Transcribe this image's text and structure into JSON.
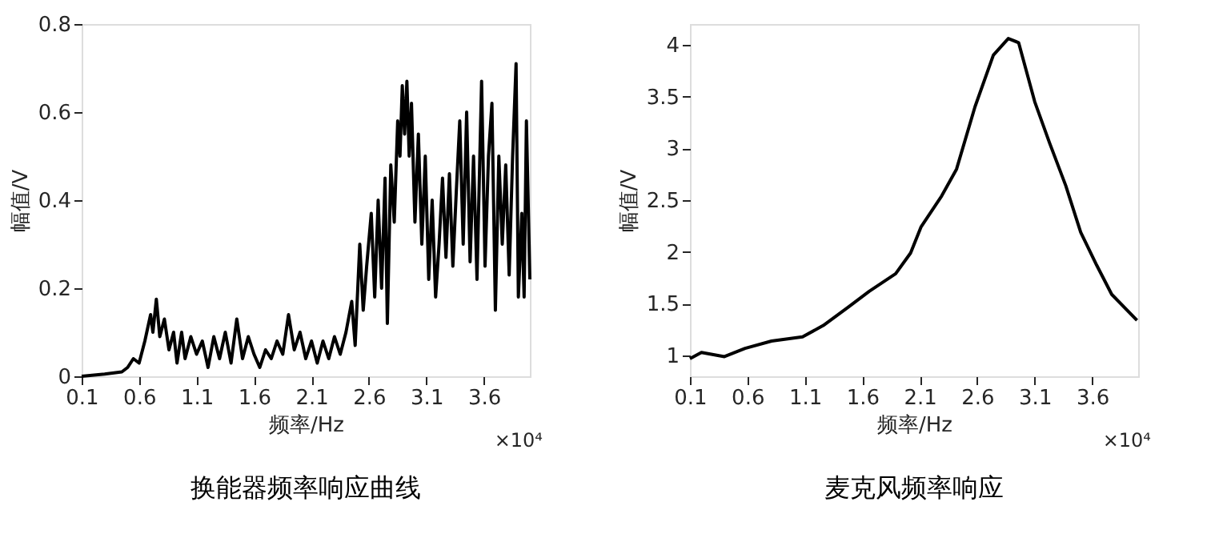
{
  "chart_data": [
    {
      "type": "line",
      "title": "换能器频率响应曲线",
      "xlabel": "频率/Hz",
      "ylabel": "幅值/V",
      "annotations": [
        "×10⁴"
      ],
      "xlim": [
        0.1,
        4.0
      ],
      "ylim": [
        0,
        0.8
      ],
      "xticks": [
        0.1,
        0.6,
        1.1,
        1.6,
        2.1,
        2.6,
        3.1,
        3.6
      ],
      "yticks": [
        0,
        0.2,
        0.4,
        0.6,
        0.8
      ],
      "grid": false,
      "marker": "none",
      "line_style": "solid",
      "series": [
        {
          "color": "#000000",
          "x": [
            0.1,
            0.3,
            0.45,
            0.5,
            0.55,
            0.6,
            0.65,
            0.7,
            0.72,
            0.75,
            0.78,
            0.82,
            0.86,
            0.9,
            0.93,
            0.97,
            1.0,
            1.05,
            1.1,
            1.15,
            1.2,
            1.25,
            1.3,
            1.35,
            1.4,
            1.45,
            1.5,
            1.55,
            1.6,
            1.65,
            1.7,
            1.75,
            1.8,
            1.85,
            1.9,
            1.95,
            2.0,
            2.05,
            2.1,
            2.15,
            2.2,
            2.25,
            2.3,
            2.35,
            2.4,
            2.45,
            2.48,
            2.52,
            2.55,
            2.58,
            2.62,
            2.65,
            2.68,
            2.71,
            2.74,
            2.76,
            2.79,
            2.82,
            2.85,
            2.87,
            2.89,
            2.91,
            2.93,
            2.95,
            2.97,
            3.0,
            3.03,
            3.06,
            3.09,
            3.12,
            3.15,
            3.18,
            3.21,
            3.24,
            3.27,
            3.3,
            3.33,
            3.36,
            3.39,
            3.42,
            3.45,
            3.48,
            3.51,
            3.54,
            3.58,
            3.61,
            3.64,
            3.67,
            3.7,
            3.73,
            3.76,
            3.79,
            3.82,
            3.85,
            3.88,
            3.9,
            3.93,
            3.95,
            3.97,
            4.0
          ],
          "values": [
            0,
            0.005,
            0.01,
            0.02,
            0.04,
            0.03,
            0.08,
            0.14,
            0.1,
            0.175,
            0.09,
            0.13,
            0.06,
            0.1,
            0.03,
            0.1,
            0.04,
            0.09,
            0.05,
            0.08,
            0.02,
            0.09,
            0.04,
            0.1,
            0.03,
            0.13,
            0.04,
            0.09,
            0.05,
            0.02,
            0.06,
            0.04,
            0.08,
            0.05,
            0.14,
            0.06,
            0.1,
            0.04,
            0.08,
            0.03,
            0.08,
            0.04,
            0.09,
            0.05,
            0.1,
            0.17,
            0.07,
            0.3,
            0.15,
            0.25,
            0.37,
            0.18,
            0.4,
            0.2,
            0.45,
            0.12,
            0.48,
            0.35,
            0.58,
            0.5,
            0.66,
            0.55,
            0.67,
            0.5,
            0.62,
            0.35,
            0.55,
            0.3,
            0.5,
            0.22,
            0.4,
            0.18,
            0.3,
            0.45,
            0.27,
            0.46,
            0.25,
            0.42,
            0.58,
            0.3,
            0.6,
            0.26,
            0.5,
            0.22,
            0.67,
            0.25,
            0.5,
            0.62,
            0.15,
            0.5,
            0.3,
            0.48,
            0.23,
            0.5,
            0.71,
            0.18,
            0.37,
            0.18,
            0.58,
            0.22
          ]
        }
      ]
    },
    {
      "type": "line",
      "title": "麦克风频率响应",
      "xlabel": "频率/Hz",
      "ylabel": "幅值/V",
      "annotations": [
        "×10⁴"
      ],
      "xlim": [
        0.1,
        4.0
      ],
      "ylim": [
        0.8,
        4.2
      ],
      "xticks": [
        0.1,
        0.6,
        1.1,
        1.6,
        2.1,
        2.6,
        3.1,
        3.6
      ],
      "yticks": [
        1,
        1.5,
        2,
        2.5,
        3,
        3.5,
        4
      ],
      "grid": false,
      "marker": "none",
      "line_style": "solid",
      "series": [
        {
          "color": "#000000",
          "x": [
            0.1,
            0.2,
            0.4,
            0.58,
            0.81,
            1.08,
            1.26,
            1.48,
            1.66,
            1.89,
            2.02,
            2.11,
            2.29,
            2.42,
            2.58,
            2.74,
            2.87,
            2.96,
            3.1,
            3.23,
            3.37,
            3.5,
            3.64,
            3.77,
            3.99
          ],
          "values": [
            0.97,
            1.03,
            0.99,
            1.07,
            1.14,
            1.18,
            1.29,
            1.47,
            1.62,
            1.79,
            1.99,
            2.24,
            2.54,
            2.8,
            3.4,
            3.9,
            4.06,
            4.02,
            3.45,
            3.05,
            2.64,
            2.19,
            1.87,
            1.59,
            1.34
          ]
        }
      ]
    }
  ]
}
